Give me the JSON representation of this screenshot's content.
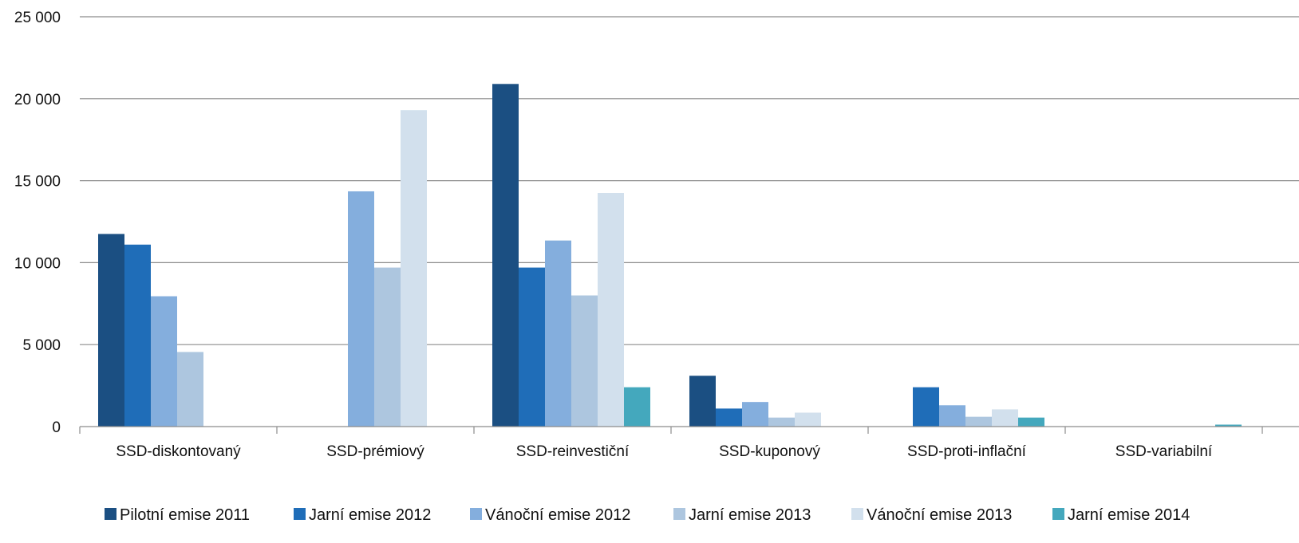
{
  "chart_data": {
    "type": "bar",
    "title": "",
    "xlabel": "",
    "ylabel": "",
    "ylim": [
      0,
      25000
    ],
    "yticks": [
      0,
      5000,
      10000,
      15000,
      20000,
      25000
    ],
    "ytick_labels": [
      "0",
      "5 000",
      "10 000",
      "15 000",
      "20 000",
      "25 000"
    ],
    "grid": "horizontal",
    "legend_position": "bottom",
    "categories": [
      "SSD-diskontovaný",
      "SSD-prémiový",
      "SSD-reinvestiční",
      "SSD-kuponový",
      "SSD-proti-inflační",
      "SSD-variabilní"
    ],
    "series": [
      {
        "name": "Pilotní emise 2011",
        "color": "#1b4f82",
        "values": [
          11750,
          0,
          20900,
          3100,
          0,
          0
        ]
      },
      {
        "name": "Jarní emise 2012",
        "color": "#1f6db8",
        "values": [
          11100,
          0,
          9700,
          1100,
          2400,
          0
        ]
      },
      {
        "name": "Vánoční emise 2012",
        "color": "#84aedd",
        "values": [
          7950,
          14350,
          11350,
          1500,
          1300,
          0
        ]
      },
      {
        "name": "Jarní emise 2013",
        "color": "#adc6df",
        "values": [
          4550,
          9700,
          8000,
          550,
          600,
          0
        ]
      },
      {
        "name": "Vánoční emise 2013",
        "color": "#d2e0ed",
        "values": [
          0,
          19300,
          14250,
          850,
          1050,
          0
        ]
      },
      {
        "name": "Jarní emise 2014",
        "color": "#44a8bd",
        "values": [
          0,
          0,
          2400,
          0,
          550,
          120
        ]
      }
    ]
  }
}
